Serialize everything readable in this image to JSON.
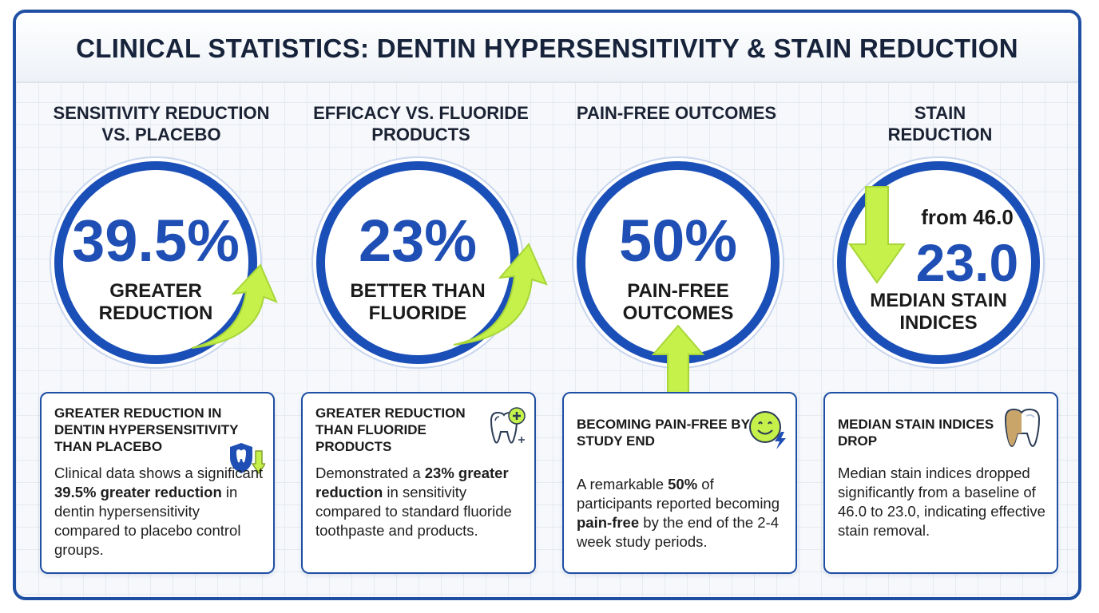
{
  "title": "CLINICAL STATISTICS: DENTIN HYPERSENSITIVITY & STAIN REDUCTION",
  "colors": {
    "primary_blue": "#1f4fb4",
    "border_blue": "#1b4fb8",
    "accent_green": "#c6f04a",
    "text_dark": "#1a1a1a"
  },
  "stats": [
    {
      "heading": "SENSITIVITY REDUCTION VS. PLACEBO",
      "value": "39.5%",
      "label": "GREATER REDUCTION",
      "arrow_icon": "trend-up-arrow-icon",
      "card": {
        "title": "GREATER REDUCTION IN DENTIN HYPERSENSITIVITY THAN PLACEBO",
        "icon": "shield-tooth-down-arrow-icon",
        "body_pre": "Clinical data shows a significant ",
        "body_bold": "39.5% greater reduction",
        "body_post": " in dentin hypersensitivity compared to placebo control groups."
      }
    },
    {
      "heading": "EFFICACY VS. FLUORIDE PRODUCTS",
      "value": "23%",
      "label": "BETTER THAN FLUORIDE",
      "arrow_icon": "trend-up-arrow-icon",
      "card": {
        "title": "GREATER REDUCTION THAN FLUORIDE PRODUCTS",
        "icon": "tooth-plus-icon",
        "body_pre": "Demonstrated a ",
        "body_bold": "23% greater reduction",
        "body_post": " in sensitivity compared to standard fluoride toothpaste and products."
      }
    },
    {
      "heading": "PAIN-FREE OUTCOMES",
      "value": "50%",
      "label": "PAIN-FREE OUTCOMES",
      "arrow_icon": "up-arrow-icon",
      "card": {
        "title": "BECOMING PAIN-FREE BY STUDY END",
        "icon": "smiley-bolt-icon",
        "body_pre": "A remarkable ",
        "body_bold": "50%",
        "body_mid": " of participants reported becoming ",
        "body_bold2": "pain-free",
        "body_post": " by the end of the 2-4 week study periods."
      }
    },
    {
      "heading": "STAIN REDUCTION",
      "from_text": "from 46.0",
      "value": "23.0",
      "label": "MEDIAN STAIN INDICES",
      "arrow_icon": "down-arrow-icon",
      "card": {
        "title": "MEDIAN STAIN INDICES DROP",
        "icon": "stained-tooth-icon",
        "body": "Median stain indices dropped significantly from a baseline of 46.0 to 23.0, indicating effective stain removal."
      }
    }
  ]
}
